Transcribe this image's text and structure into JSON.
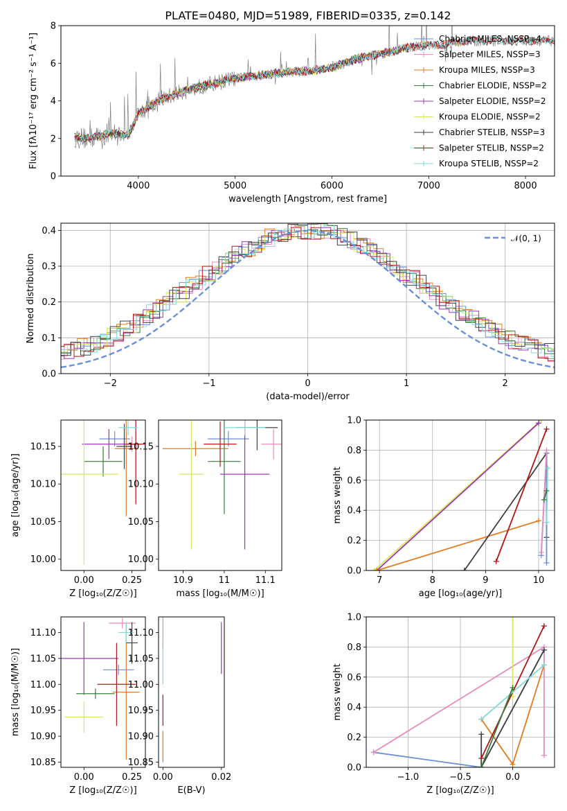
{
  "figure": {
    "title": "PLATE=0480, MJD=51989, FIBERID=0335, z=0.142"
  },
  "colors": {
    "Chabrier MILES": "#6a8fd8",
    "Salpeter MILES": "#e88bbf",
    "Kroupa MILES": "#e07b20",
    "Chabrier ELODIE": "#3a7d3a",
    "Salpeter ELODIE": "#9b35b5",
    "Kroupa ELODIE": "#d4e85a",
    "Chabrier STELIB": "#404040",
    "Salpeter STELIB": "#b01515",
    "Kroupa STELIB": "#7fd8d8",
    "data": "#808080",
    "normal": "#6a8fd8"
  },
  "chart_data": [
    {
      "id": "spectrum",
      "type": "line",
      "title": "PLATE=0480, MJD=51989, FIBERID=0335, z=0.142",
      "xlabel": "wavelength [Angstrom, rest frame]",
      "ylabel": "Flux [fλ10⁻¹⁷ erg cm⁻² s⁻¹ A⁻¹]",
      "xlim": [
        3200,
        8300
      ],
      "ylim": [
        0,
        8
      ],
      "xticks": [
        4000,
        5000,
        6000,
        7000,
        8000
      ],
      "yticks": [
        0,
        2,
        4,
        6,
        8
      ],
      "legend": [
        "Chabrier MILES, NSSP=4",
        "Salpeter MILES, NSSP=3",
        "Kroupa MILES, NSSP=3",
        "Chabrier ELODIE, NSSP=2",
        "Salpeter ELODIE, NSSP=2",
        "Kroupa ELODIE, NSSP=2",
        "Chabrier STELIB, NSSP=3",
        "Salpeter STELIB, NSSP=2",
        "Kroupa STELIB, NSSP=2"
      ],
      "legend_position": "right",
      "model_continuum": {
        "x": [
          3340,
          3500,
          3700,
          3900,
          4000,
          4200,
          4400,
          4600,
          4800,
          5000,
          5200,
          5400,
          5600,
          5800,
          6000,
          6200,
          6400,
          6600,
          6800,
          7000,
          7200,
          7400
        ],
        "y": [
          2.05,
          2.0,
          2.25,
          2.2,
          3.3,
          4.0,
          4.4,
          4.7,
          4.95,
          5.2,
          5.3,
          5.45,
          5.55,
          5.6,
          5.75,
          6.15,
          6.4,
          6.6,
          6.85,
          6.95,
          7.05,
          7.2
        ]
      }
    },
    {
      "id": "residuals",
      "type": "histogram",
      "xlabel": "(data-model)/error",
      "ylabel": "Normed distribution",
      "xlim": [
        -2.5,
        2.5
      ],
      "ylim": [
        0,
        0.42
      ],
      "xticks": [
        -2,
        -1,
        0,
        1,
        2
      ],
      "yticks": [
        0.0,
        0.1,
        0.2,
        0.3,
        0.4
      ],
      "legend": [
        "𝒩(0, 1)"
      ],
      "legend_position": "top-right",
      "grid": true
    },
    {
      "id": "age-vs-Z",
      "type": "errorbar",
      "xlabel": "Z [log₁₀(Z/Z☉)]",
      "ylabel": "age  [log₁₀(age/yr)]",
      "xlim": [
        -0.12,
        0.32
      ],
      "ylim": [
        9.985,
        10.185
      ],
      "xticks": [
        0.0,
        0.25
      ],
      "yticks": [
        10.0,
        10.05,
        10.1,
        10.15
      ],
      "points": [
        {
          "model": "Chabrier MILES",
          "x": 0.16,
          "xerr": 0.08,
          "y": 10.16,
          "yerr": 0.01
        },
        {
          "model": "Salpeter MILES",
          "x": 0.25,
          "xerr": 0.05,
          "y": 10.153,
          "yerr": 0.01
        },
        {
          "model": "Kroupa MILES",
          "x": 0.22,
          "xerr": 0.06,
          "y": 10.147,
          "yerr": 0.09
        },
        {
          "model": "Chabrier ELODIE",
          "x": 0.1,
          "xerr": 0.1,
          "y": 10.13,
          "yerr": 0.02
        },
        {
          "model": "Salpeter ELODIE",
          "x": 0.13,
          "xerr": 0.14,
          "y": 10.153,
          "yerr": 0.02
        },
        {
          "model": "Kroupa ELODIE",
          "x": 0.0,
          "xerr": 0.18,
          "y": 10.113,
          "yerr": 0.12
        },
        {
          "model": "Chabrier STELIB",
          "x": 0.21,
          "xerr": 0.04,
          "y": 10.15,
          "yerr": 0.03
        },
        {
          "model": "Salpeter STELIB",
          "x": 0.27,
          "xerr": 0.05,
          "y": 10.153,
          "yerr": 0.08
        },
        {
          "model": "Kroupa STELIB",
          "x": 0.23,
          "xerr": 0.05,
          "y": 10.175,
          "yerr": 0.01
        }
      ]
    },
    {
      "id": "age-vs-mass",
      "type": "errorbar",
      "xlabel": "mass [log₁₀(M/M☉)]",
      "ylabel": "",
      "xlim": [
        10.84,
        11.14
      ],
      "ylim": [
        9.985,
        10.185
      ],
      "xticks": [
        10.9,
        11.0,
        11.1
      ],
      "yticks": [
        10.0,
        10.05,
        10.1,
        10.15
      ],
      "points": [
        {
          "model": "Chabrier MILES",
          "x": 11.01,
          "xerr": 0.05,
          "y": 10.16,
          "yerr": 0.01
        },
        {
          "model": "Salpeter MILES",
          "x": 11.12,
          "xerr": 0.03,
          "y": 10.153,
          "yerr": 0.02
        },
        {
          "model": "Kroupa MILES",
          "x": 10.93,
          "xerr": 0.08,
          "y": 10.147,
          "yerr": 0.01
        },
        {
          "model": "Chabrier ELODIE",
          "x": 11.0,
          "xerr": 0.04,
          "y": 10.13,
          "yerr": 0.07
        },
        {
          "model": "Salpeter ELODIE",
          "x": 11.05,
          "xerr": 0.06,
          "y": 10.113,
          "yerr": 0.1
        },
        {
          "model": "Kroupa ELODIE",
          "x": 10.92,
          "xerr": 0.03,
          "y": 10.113,
          "yerr": 0.1
        },
        {
          "model": "Chabrier STELIB",
          "x": 11.08,
          "xerr": 0.05,
          "y": 10.175,
          "yerr": 0.03
        },
        {
          "model": "Salpeter STELIB",
          "x": 10.99,
          "xerr": 0.04,
          "y": 10.153,
          "yerr": 0.03
        },
        {
          "model": "Kroupa STELIB",
          "x": 11.05,
          "xerr": 0.05,
          "y": 10.175,
          "yerr": 0.01
        }
      ]
    },
    {
      "id": "weight-vs-age",
      "type": "line",
      "xlabel": "age  [log₁₀(age/yr)]",
      "ylabel": "mass weight",
      "xlim": [
        6.75,
        10.3
      ],
      "ylim": [
        0,
        1.0
      ],
      "xticks": [
        7,
        8,
        9,
        10
      ],
      "yticks": [
        0.0,
        0.2,
        0.4,
        0.6,
        0.8,
        1.0
      ],
      "grid": true,
      "series": [
        {
          "model": "Kroupa ELODIE",
          "x": [
            6.9,
            10.05
          ],
          "y": [
            0.0,
            1.0
          ]
        },
        {
          "model": "Salpeter ELODIE",
          "x": [
            6.95,
            10.0
          ],
          "y": [
            0.0,
            0.98
          ]
        },
        {
          "model": "Kroupa MILES",
          "x": [
            6.95,
            10.0
          ],
          "y": [
            0.0,
            0.33
          ]
        },
        {
          "model": "Chabrier STELIB",
          "x": [
            8.6,
            10.15,
            10.15
          ],
          "y": [
            0.0,
            0.78,
            0.22
          ]
        },
        {
          "model": "Salpeter STELIB",
          "x": [
            9.2,
            10.15
          ],
          "y": [
            0.06,
            0.94
          ]
        },
        {
          "model": "Chabrier MILES",
          "x": [
            10.05,
            10.15,
            10.15
          ],
          "y": [
            0.1,
            0.78,
            0.05
          ]
        },
        {
          "model": "Salpeter MILES",
          "x": [
            10.05,
            10.15
          ],
          "y": [
            0.12,
            0.8
          ]
        },
        {
          "model": "Kroupa STELIB",
          "x": [
            10.15,
            10.17
          ],
          "y": [
            0.32,
            0.68
          ]
        },
        {
          "model": "Chabrier ELODIE",
          "x": [
            10.1,
            10.15
          ],
          "y": [
            0.47,
            0.53
          ]
        }
      ]
    },
    {
      "id": "mass-vs-Z",
      "type": "errorbar",
      "xlabel": "Z [log₁₀(Z/Z☉)]",
      "ylabel": "mass [log₁₀(M/M☉)]",
      "xlim": [
        -0.12,
        0.32
      ],
      "ylim": [
        10.84,
        11.13
      ],
      "xticks": [
        0.0,
        0.25
      ],
      "yticks": [
        10.85,
        10.9,
        10.95,
        11.0,
        11.05,
        11.1
      ],
      "points": [
        {
          "model": "Chabrier MILES",
          "x": 0.18,
          "xerr": 0.08,
          "y": 11.028,
          "yerr": 0.01
        },
        {
          "model": "Salpeter MILES",
          "x": 0.2,
          "xerr": 0.07,
          "y": 11.118,
          "yerr": 0.01
        },
        {
          "model": "Kroupa MILES",
          "x": 0.22,
          "xerr": 0.07,
          "y": 10.985,
          "yerr": 0.13
        },
        {
          "model": "Chabrier ELODIE",
          "x": 0.06,
          "xerr": 0.1,
          "y": 10.982,
          "yerr": 0.01
        },
        {
          "model": "Salpeter ELODIE",
          "x": 0.0,
          "xerr": 0.18,
          "y": 11.05,
          "yerr": 0.07
        },
        {
          "model": "Kroupa ELODIE",
          "x": 0.0,
          "xerr": 0.1,
          "y": 10.937,
          "yerr": 0.03
        },
        {
          "model": "Chabrier STELIB",
          "x": 0.25,
          "xerr": 0.03,
          "y": 11.08,
          "yerr": 0.04
        },
        {
          "model": "Salpeter STELIB",
          "x": 0.17,
          "xerr": 0.1,
          "y": 11.0,
          "yerr": 0.08
        },
        {
          "model": "Kroupa STELIB",
          "x": 0.22,
          "xerr": 0.04,
          "y": 11.1,
          "yerr": 0.02
        }
      ]
    },
    {
      "id": "mass-vs-EBV",
      "type": "errorbar",
      "xlabel": "E(B-V)",
      "ylabel": "",
      "xlim": [
        -0.0015,
        0.021
      ],
      "ylim": [
        10.84,
        11.13
      ],
      "xticks": [
        0.0,
        0.02
      ],
      "yticks": [
        10.85,
        10.9,
        10.95,
        11.0,
        11.05,
        11.1
      ],
      "points": [
        {
          "model": "Kroupa MILES",
          "x": 0.0,
          "xerr": 0,
          "y": 10.88,
          "yerr": 0.03
        },
        {
          "model": "Salpeter STELIB",
          "x": 0.0,
          "xerr": 0,
          "y": 10.95,
          "yerr": 0.03
        },
        {
          "model": "Kroupa STELIB",
          "x": 0.0,
          "xerr": 0,
          "y": 11.04,
          "yerr": 0.04
        },
        {
          "model": "Salpeter MILES",
          "x": 0.0,
          "xerr": 0,
          "y": 11.1,
          "yerr": 0.03
        },
        {
          "model": "Salpeter ELODIE",
          "x": 0.02,
          "xerr": 0,
          "y": 11.07,
          "yerr": 0.05
        }
      ]
    },
    {
      "id": "weight-vs-Z",
      "type": "line",
      "xlabel": "Z [log₁₀(Z/Z☉)]",
      "ylabel": "mass weight",
      "xlim": [
        -1.4,
        0.4
      ],
      "ylim": [
        0,
        1.0
      ],
      "xticks": [
        -1.0,
        -0.5,
        0.0
      ],
      "yticks": [
        0.0,
        0.2,
        0.4,
        0.6,
        0.8,
        1.0
      ],
      "grid": true,
      "series": [
        {
          "model": "Chabrier MILES",
          "x": [
            -1.33,
            -0.3,
            0.3
          ],
          "y": [
            0.1,
            0.0,
            0.78
          ]
        },
        {
          "model": "Salpeter MILES",
          "x": [
            -1.33,
            0.3,
            0.3
          ],
          "y": [
            0.1,
            0.8,
            0.08
          ]
        },
        {
          "model": "Kroupa MILES",
          "x": [
            -0.3,
            0.0,
            0.3
          ],
          "y": [
            0.32,
            0.02,
            0.68
          ]
        },
        {
          "model": "Kroupa ELODIE",
          "x": [
            0.0,
            0.0
          ],
          "y": [
            0.47,
            1.0
          ]
        },
        {
          "model": "Chabrier STELIB",
          "x": [
            -0.3,
            -0.3,
            0.3
          ],
          "y": [
            0.22,
            0.0,
            0.78
          ]
        },
        {
          "model": "Salpeter STELIB",
          "x": [
            -0.3,
            0.3
          ],
          "y": [
            0.06,
            0.94
          ]
        },
        {
          "model": "Kroupa STELIB",
          "x": [
            -0.3,
            0.3
          ],
          "y": [
            0.32,
            0.68
          ]
        },
        {
          "model": "Chabrier ELODIE",
          "x": [
            -0.3,
            0.0
          ],
          "y": [
            0.0,
            0.53
          ]
        }
      ]
    }
  ]
}
